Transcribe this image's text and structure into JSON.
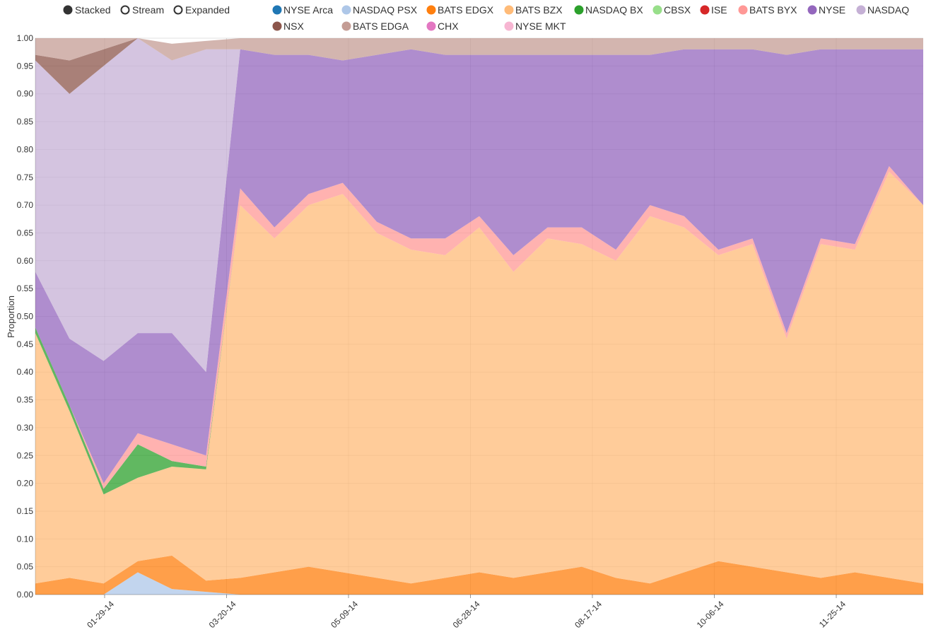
{
  "controls": [
    {
      "label": "Stacked",
      "selected": true
    },
    {
      "label": "Stream",
      "selected": false
    },
    {
      "label": "Expanded",
      "selected": false
    }
  ],
  "chart_data": {
    "type": "area",
    "stacking": "expanded",
    "ylabel": "Proportion",
    "xlabel": "",
    "ylim": [
      0,
      1
    ],
    "yticks": [
      "0.00",
      "0.05",
      "0.10",
      "0.15",
      "0.20",
      "0.25",
      "0.30",
      "0.35",
      "0.40",
      "0.45",
      "0.50",
      "0.55",
      "0.60",
      "0.65",
      "0.70",
      "0.75",
      "0.80",
      "0.85",
      "0.90",
      "0.95",
      "1.00"
    ],
    "xticks": [
      "01-29-14",
      "03-20-14",
      "05-09-14",
      "06-28-14",
      "08-17-14",
      "10-06-14",
      "11-25-14"
    ],
    "grid": true,
    "legend_position": "top-right",
    "x": [
      "01-01-14",
      "01-15-14",
      "01-29-14",
      "02-12-14",
      "02-26-14",
      "03-12-14",
      "03-20-14",
      "04-03-14",
      "04-17-14",
      "05-01-14",
      "05-15-14",
      "05-29-14",
      "06-12-14",
      "06-26-14",
      "07-10-14",
      "07-24-14",
      "08-07-14",
      "08-21-14",
      "09-04-14",
      "09-18-14",
      "10-02-14",
      "10-16-14",
      "10-30-14",
      "11-13-14",
      "11-27-14",
      "12-11-14",
      "12-25-14"
    ],
    "series": [
      {
        "name": "NYSE Arca",
        "color": "#1f77b4",
        "values": [
          0,
          0,
          0,
          0,
          0,
          0,
          0,
          0,
          0,
          0,
          0,
          0,
          0,
          0,
          0,
          0,
          0,
          0,
          0,
          0,
          0,
          0,
          0,
          0,
          0,
          0,
          0
        ]
      },
      {
        "name": "NASDAQ PSX",
        "color": "#aec7e8",
        "values": [
          0,
          0,
          0,
          0.04,
          0.01,
          0.005,
          0,
          0,
          0,
          0,
          0,
          0,
          0,
          0,
          0,
          0,
          0,
          0,
          0,
          0,
          0,
          0,
          0,
          0,
          0,
          0,
          0
        ]
      },
      {
        "name": "BATS EDGX",
        "color": "#ff7f0e",
        "values": [
          0.02,
          0.03,
          0.02,
          0.02,
          0.06,
          0.02,
          0.03,
          0.04,
          0.05,
          0.04,
          0.03,
          0.02,
          0.03,
          0.04,
          0.03,
          0.04,
          0.05,
          0.03,
          0.02,
          0.04,
          0.06,
          0.05,
          0.04,
          0.03,
          0.04,
          0.03,
          0.02
        ]
      },
      {
        "name": "BATS BZX",
        "color": "#ffbb78",
        "values": [
          0.45,
          0.3,
          0.16,
          0.15,
          0.16,
          0.2,
          0.67,
          0.6,
          0.65,
          0.68,
          0.62,
          0.6,
          0.58,
          0.62,
          0.55,
          0.6,
          0.58,
          0.57,
          0.66,
          0.62,
          0.55,
          0.58,
          0.42,
          0.6,
          0.58,
          0.73,
          0.68
        ]
      },
      {
        "name": "NASDAQ BX",
        "color": "#2ca02c",
        "values": [
          0.01,
          0.01,
          0.01,
          0.06,
          0.01,
          0.005,
          0,
          0,
          0,
          0,
          0,
          0,
          0,
          0,
          0,
          0,
          0,
          0,
          0,
          0,
          0,
          0,
          0,
          0,
          0,
          0,
          0
        ]
      },
      {
        "name": "CBSX",
        "color": "#98df8a",
        "values": [
          0,
          0,
          0,
          0,
          0,
          0,
          0,
          0,
          0,
          0,
          0,
          0,
          0,
          0,
          0,
          0,
          0,
          0,
          0,
          0,
          0,
          0,
          0,
          0,
          0,
          0,
          0
        ]
      },
      {
        "name": "ISE",
        "color": "#d62728",
        "values": [
          0,
          0,
          0,
          0,
          0,
          0,
          0,
          0,
          0,
          0,
          0,
          0,
          0,
          0,
          0,
          0,
          0,
          0,
          0,
          0,
          0,
          0,
          0,
          0,
          0,
          0,
          0
        ]
      },
      {
        "name": "BATS BYX",
        "color": "#ff9896",
        "values": [
          0,
          0,
          0.01,
          0.02,
          0.03,
          0.02,
          0.03,
          0.02,
          0.02,
          0.02,
          0.02,
          0.02,
          0.03,
          0.02,
          0.03,
          0.02,
          0.03,
          0.02,
          0.02,
          0.02,
          0.01,
          0.01,
          0.01,
          0.01,
          0.01,
          0.01,
          0
        ]
      },
      {
        "name": "NYSE",
        "color": "#9467bd",
        "values": [
          0.1,
          0.12,
          0.22,
          0.18,
          0.2,
          0.15,
          0.25,
          0.31,
          0.25,
          0.22,
          0.3,
          0.34,
          0.33,
          0.29,
          0.36,
          0.31,
          0.31,
          0.35,
          0.27,
          0.3,
          0.36,
          0.34,
          0.5,
          0.34,
          0.35,
          0.21,
          0.28
        ]
      },
      {
        "name": "NASDAQ",
        "color": "#c5b0d5",
        "values": [
          0.38,
          0.44,
          0.53,
          0.58,
          0.49,
          0.58,
          0,
          0,
          0,
          0,
          0,
          0,
          0,
          0,
          0,
          0,
          0,
          0,
          0,
          0,
          0,
          0,
          0,
          0,
          0,
          0,
          0
        ]
      },
      {
        "name": "NSX",
        "color": "#8c564b",
        "values": [
          0.01,
          0.06,
          0.03,
          0,
          0,
          0,
          0,
          0,
          0,
          0,
          0,
          0,
          0,
          0,
          0,
          0,
          0,
          0,
          0,
          0,
          0,
          0,
          0,
          0,
          0,
          0,
          0
        ]
      },
      {
        "name": "BATS EDGA",
        "color": "#c49c94",
        "values": [
          0.03,
          0.04,
          0.02,
          0.02,
          0.03,
          0.015,
          0.02,
          0.03,
          0.03,
          0.04,
          0.03,
          0.02,
          0.03,
          0.03,
          0.03,
          0.03,
          0.03,
          0.03,
          0.03,
          0.02,
          0.02,
          0.02,
          0.03,
          0.02,
          0.02,
          0.02,
          0.02
        ]
      },
      {
        "name": "CHX",
        "color": "#e377c2",
        "values": [
          0,
          0,
          0,
          0,
          0,
          0,
          0,
          0,
          0,
          0,
          0,
          0,
          0,
          0,
          0,
          0,
          0,
          0,
          0,
          0,
          0,
          0,
          0,
          0,
          0,
          0,
          0
        ]
      },
      {
        "name": "NYSE MKT",
        "color": "#f7b6d2",
        "values": [
          0,
          0,
          0,
          0,
          0,
          0,
          0,
          0,
          0,
          0,
          0,
          0,
          0,
          0,
          0,
          0,
          0,
          0,
          0,
          0,
          0,
          0,
          0,
          0,
          0,
          0,
          0
        ]
      }
    ]
  }
}
